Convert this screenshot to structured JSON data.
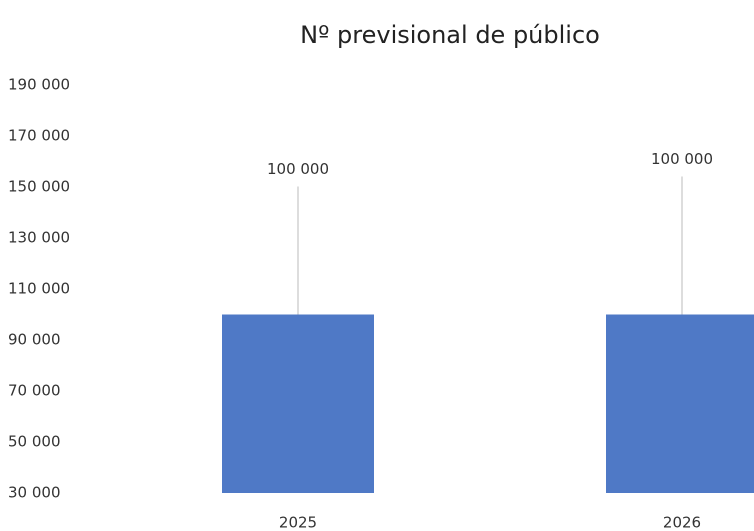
{
  "chart_data": {
    "type": "bar",
    "title": "Nº previsional de público",
    "categories": [
      "2025",
      "2026"
    ],
    "values": [
      100000,
      100000
    ],
    "value_labels": [
      "100 000",
      "100 000"
    ],
    "color": "#4f79c6",
    "ylim": [
      30000,
      190000
    ],
    "yticks": [
      {
        "value": 30000,
        "label": "30 000"
      },
      {
        "value": 50000,
        "label": "50 000"
      },
      {
        "value": 70000,
        "label": "70 000"
      },
      {
        "value": 90000,
        "label": "90 000"
      },
      {
        "value": 110000,
        "label": "110 000"
      },
      {
        "value": 130000,
        "label": "130 000"
      },
      {
        "value": 150000,
        "label": "150 000"
      },
      {
        "value": 170000,
        "label": "170 000"
      },
      {
        "value": 190000,
        "label": "190 000"
      }
    ],
    "grid": false
  }
}
